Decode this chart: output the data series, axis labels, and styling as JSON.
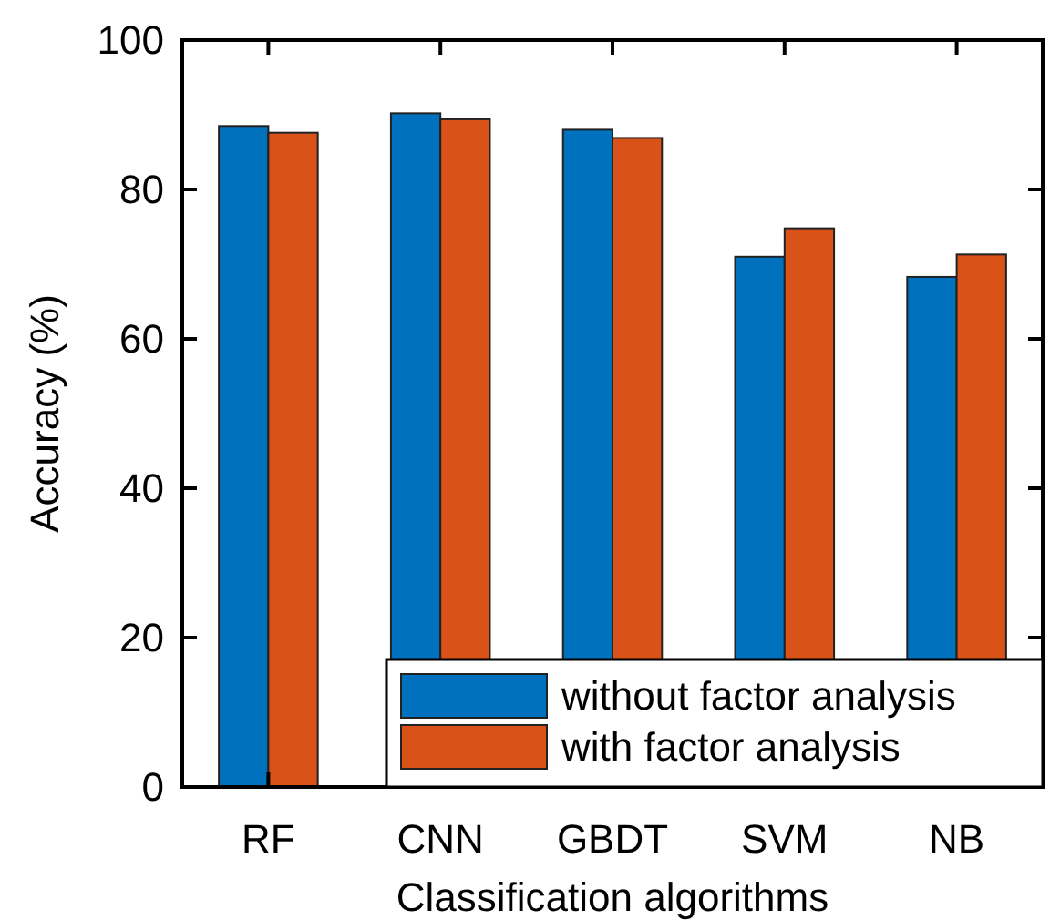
{
  "chart_data": {
    "type": "bar",
    "xlabel": "Classification algorithms",
    "ylabel": "Accuracy (%)",
    "categories": [
      "RF",
      "CNN",
      "GBDT",
      "SVM",
      "NB"
    ],
    "series": [
      {
        "name": "without factor analysis",
        "color": "#0072bd",
        "values": [
          88.5,
          90.2,
          88.0,
          71.0,
          68.3
        ]
      },
      {
        "name": "with factor analysis",
        "color": "#d95319",
        "values": [
          87.6,
          89.4,
          86.9,
          74.8,
          71.3
        ]
      }
    ],
    "ylim": [
      0,
      100
    ],
    "yticks": [
      0,
      20,
      40,
      60,
      80,
      100
    ],
    "legend": "bottom right",
    "grid": false
  }
}
